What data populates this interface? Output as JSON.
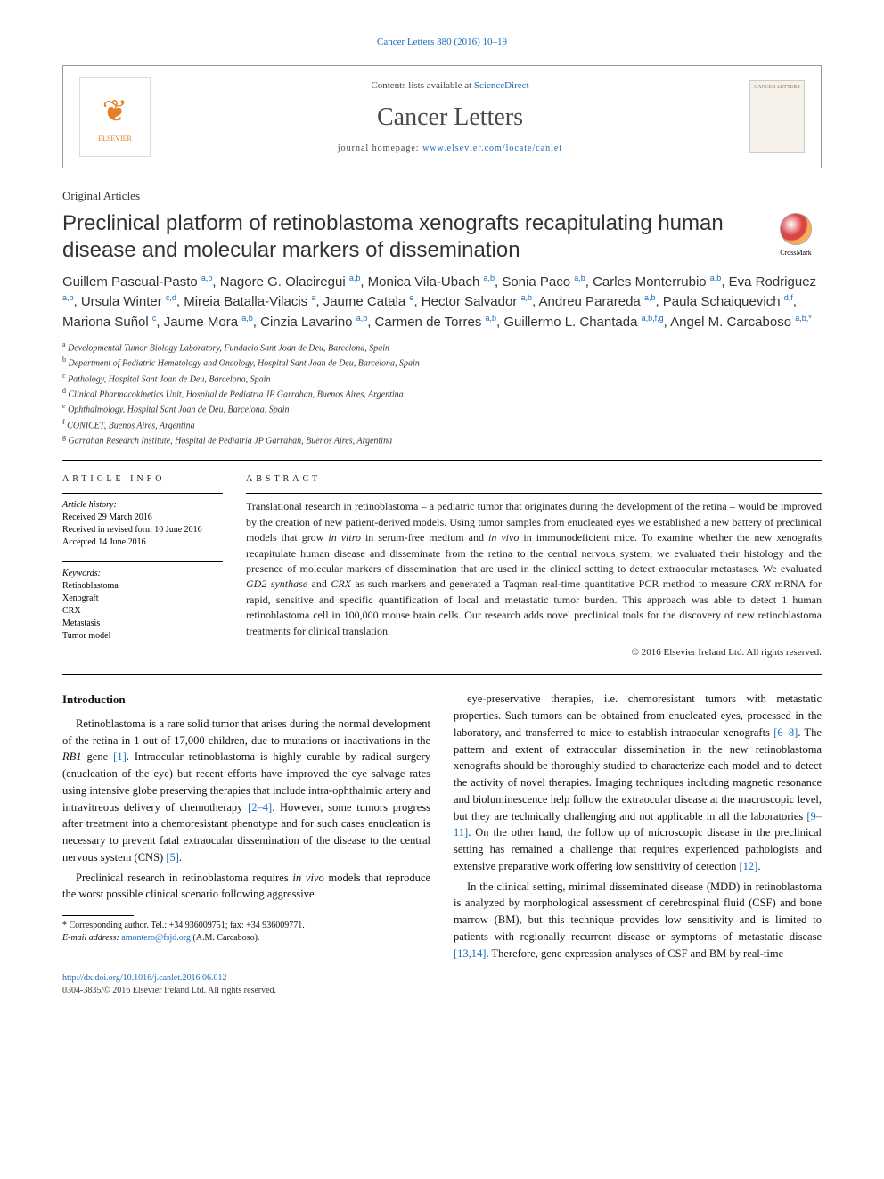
{
  "journal_ref": "Cancer Letters 380 (2016) 10–19",
  "header": {
    "contents_prefix": "Contents lists available at ",
    "contents_link": "ScienceDirect",
    "journal_title": "Cancer Letters",
    "homepage_prefix": "journal homepage: ",
    "homepage_link": "www.elsevier.com/locate/canlet",
    "elsevier_label": "ELSEVIER",
    "cover_text": "CANCER LETTERS"
  },
  "article_type": "Original Articles",
  "title": "Preclinical platform of retinoblastoma xenografts recapitulating human disease and molecular markers of dissemination",
  "crossmark_label": "CrossMark",
  "authors_html": "Guillem Pascual-Pasto <sup>a,b</sup>, Nagore G. Olaciregui <sup>a,b</sup>, Monica Vila-Ubach <sup>a,b</sup>, Sonia Paco <sup>a,b</sup>, Carles Monterrubio <sup>a,b</sup>, Eva Rodriguez <sup>a,b</sup>, Ursula Winter <sup>c,d</sup>, Mireia Batalla-Vilacis <sup>a</sup>, Jaume Catala <sup>e</sup>, Hector Salvador <sup>a,b</sup>, Andreu Parareda <sup>a,b</sup>, Paula Schaiquevich <sup>d,f</sup>, Mariona Suñol <sup>c</sup>, Jaume Mora <sup>a,b</sup>, Cinzia Lavarino <sup>a,b</sup>, Carmen de Torres <sup>a,b</sup>, Guillermo L. Chantada <sup>a,b,f,g</sup>, Angel M. Carcaboso <sup>a,b,*</sup>",
  "affiliations": [
    "a Developmental Tumor Biology Laboratory, Fundacio Sant Joan de Deu, Barcelona, Spain",
    "b Department of Pediatric Hematology and Oncology, Hospital Sant Joan de Deu, Barcelona, Spain",
    "c Pathology, Hospital Sant Joan de Deu, Barcelona, Spain",
    "d Clinical Pharmacokinetics Unit, Hospital de Pediatria JP Garrahan, Buenos Aires, Argentina",
    "e Ophthalmology, Hospital Sant Joan de Deu, Barcelona, Spain",
    "f CONICET, Buenos Aires, Argentina",
    "g Garrahan Research Institute, Hospital de Pediatria JP Garrahan, Buenos Aires, Argentina"
  ],
  "article_info": {
    "head": "ARTICLE INFO",
    "history_label": "Article history:",
    "history": [
      "Received 29 March 2016",
      "Received in revised form 10 June 2016",
      "Accepted 14 June 2016"
    ],
    "keywords_label": "Keywords:",
    "keywords": [
      "Retinoblastoma",
      "Xenograft",
      "CRX",
      "Metastasis",
      "Tumor model"
    ]
  },
  "abstract": {
    "head": "ABSTRACT",
    "text": "Translational research in retinoblastoma – a pediatric tumor that originates during the development of the retina – would be improved by the creation of new patient-derived models. Using tumor samples from enucleated eyes we established a new battery of preclinical models that grow in vitro in serum-free medium and in vivo in immunodeficient mice. To examine whether the new xenografts recapitulate human disease and disseminate from the retina to the central nervous system, we evaluated their histology and the presence of molecular markers of dissemination that are used in the clinical setting to detect extraocular metastases. We evaluated GD2 synthase and CRX as such markers and generated a Taqman real-time quantitative PCR method to measure CRX mRNA for rapid, sensitive and specific quantification of local and metastatic tumor burden. This approach was able to detect 1 human retinoblastoma cell in 100,000 mouse brain cells. Our research adds novel preclinical tools for the discovery of new retinoblastoma treatments for clinical translation.",
    "copyright": "© 2016 Elsevier Ireland Ltd. All rights reserved."
  },
  "body": {
    "intro_head": "Introduction",
    "p1": "Retinoblastoma is a rare solid tumor that arises during the normal development of the retina in 1 out of 17,000 children, due to mutations or inactivations in the RB1 gene [1]. Intraocular retinoblastoma is highly curable by radical surgery (enucleation of the eye) but recent efforts have improved the eye salvage rates using intensive globe preserving therapies that include intra-ophthalmic artery and intravitreous delivery of chemotherapy [2–4]. However, some tumors progress after treatment into a chemoresistant phenotype and for such cases enucleation is necessary to prevent fatal extraocular dissemination of the disease to the central nervous system (CNS) [5].",
    "p2": "Preclinical research in retinoblastoma requires in vivo models that reproduce the worst possible clinical scenario following aggressive",
    "p3": "eye-preservative therapies, i.e. chemoresistant tumors with metastatic properties. Such tumors can be obtained from enucleated eyes, processed in the laboratory, and transferred to mice to establish intraocular xenografts [6–8]. The pattern and extent of extraocular dissemination in the new retinoblastoma xenografts should be thoroughly studied to characterize each model and to detect the activity of novel therapies. Imaging techniques including magnetic resonance and bioluminescence help follow the extraocular disease at the macroscopic level, but they are technically challenging and not applicable in all the laboratories [9–11]. On the other hand, the follow up of microscopic disease in the preclinical setting has remained a challenge that requires experienced pathologists and extensive preparative work offering low sensitivity of detection [12].",
    "p4": "In the clinical setting, minimal disseminated disease (MDD) in retinoblastoma is analyzed by morphological assessment of cerebrospinal fluid (CSF) and bone marrow (BM), but this technique provides low sensitivity and is limited to patients with regionally recurrent disease or symptoms of metastatic disease [13,14]. Therefore, gene expression analyses of CSF and BM by real-time"
  },
  "footnotes": {
    "corr": "* Corresponding author. Tel.: +34 936009751; fax: +34 936009771.",
    "email_label": "E-mail address:",
    "email": "amontero@fsjd.org",
    "email_name": "(A.M. Carcaboso)."
  },
  "doi": {
    "url": "http://dx.doi.org/10.1016/j.canlet.2016.06.012",
    "issn": "0304-3835/© 2016 Elsevier Ireland Ltd. All rights reserved."
  },
  "refs": {
    "r1": "[1]",
    "r2_4": "[2–4]",
    "r5": "[5]",
    "r6_8": "[6–8]",
    "r9_11": "[9–11]",
    "r12": "[12]",
    "r13_14": "[13,14]"
  },
  "colors": {
    "link": "#1a6bb8",
    "text": "#000000",
    "divider": "#000000"
  }
}
